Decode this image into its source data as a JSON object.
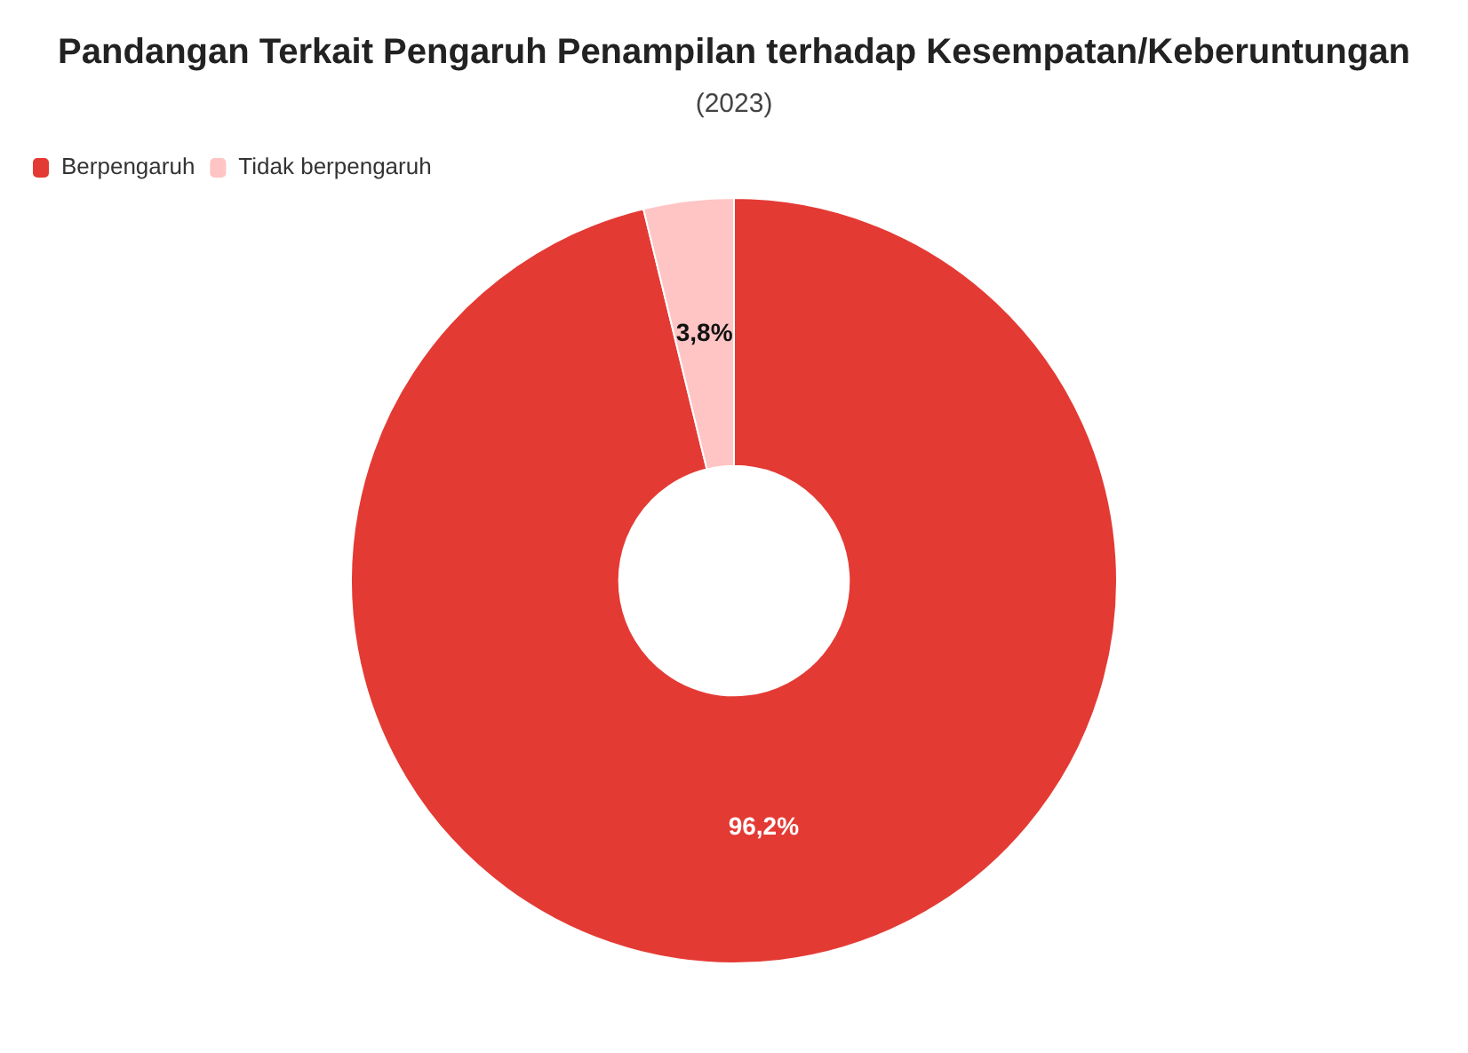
{
  "chart_data": {
    "type": "donut",
    "title": "Pandangan Terkait Pengaruh Penampilan terhadap Kesempatan/Keberuntungan",
    "subtitle": "(2023)",
    "categories": [
      "Berpengaruh",
      "Tidak berpengaruh"
    ],
    "values": [
      96.2,
      3.8
    ],
    "colors": [
      "#e43a34",
      "#ffc4c4"
    ],
    "value_labels": [
      "96,2%",
      "3,8%"
    ],
    "legend": "top left"
  }
}
